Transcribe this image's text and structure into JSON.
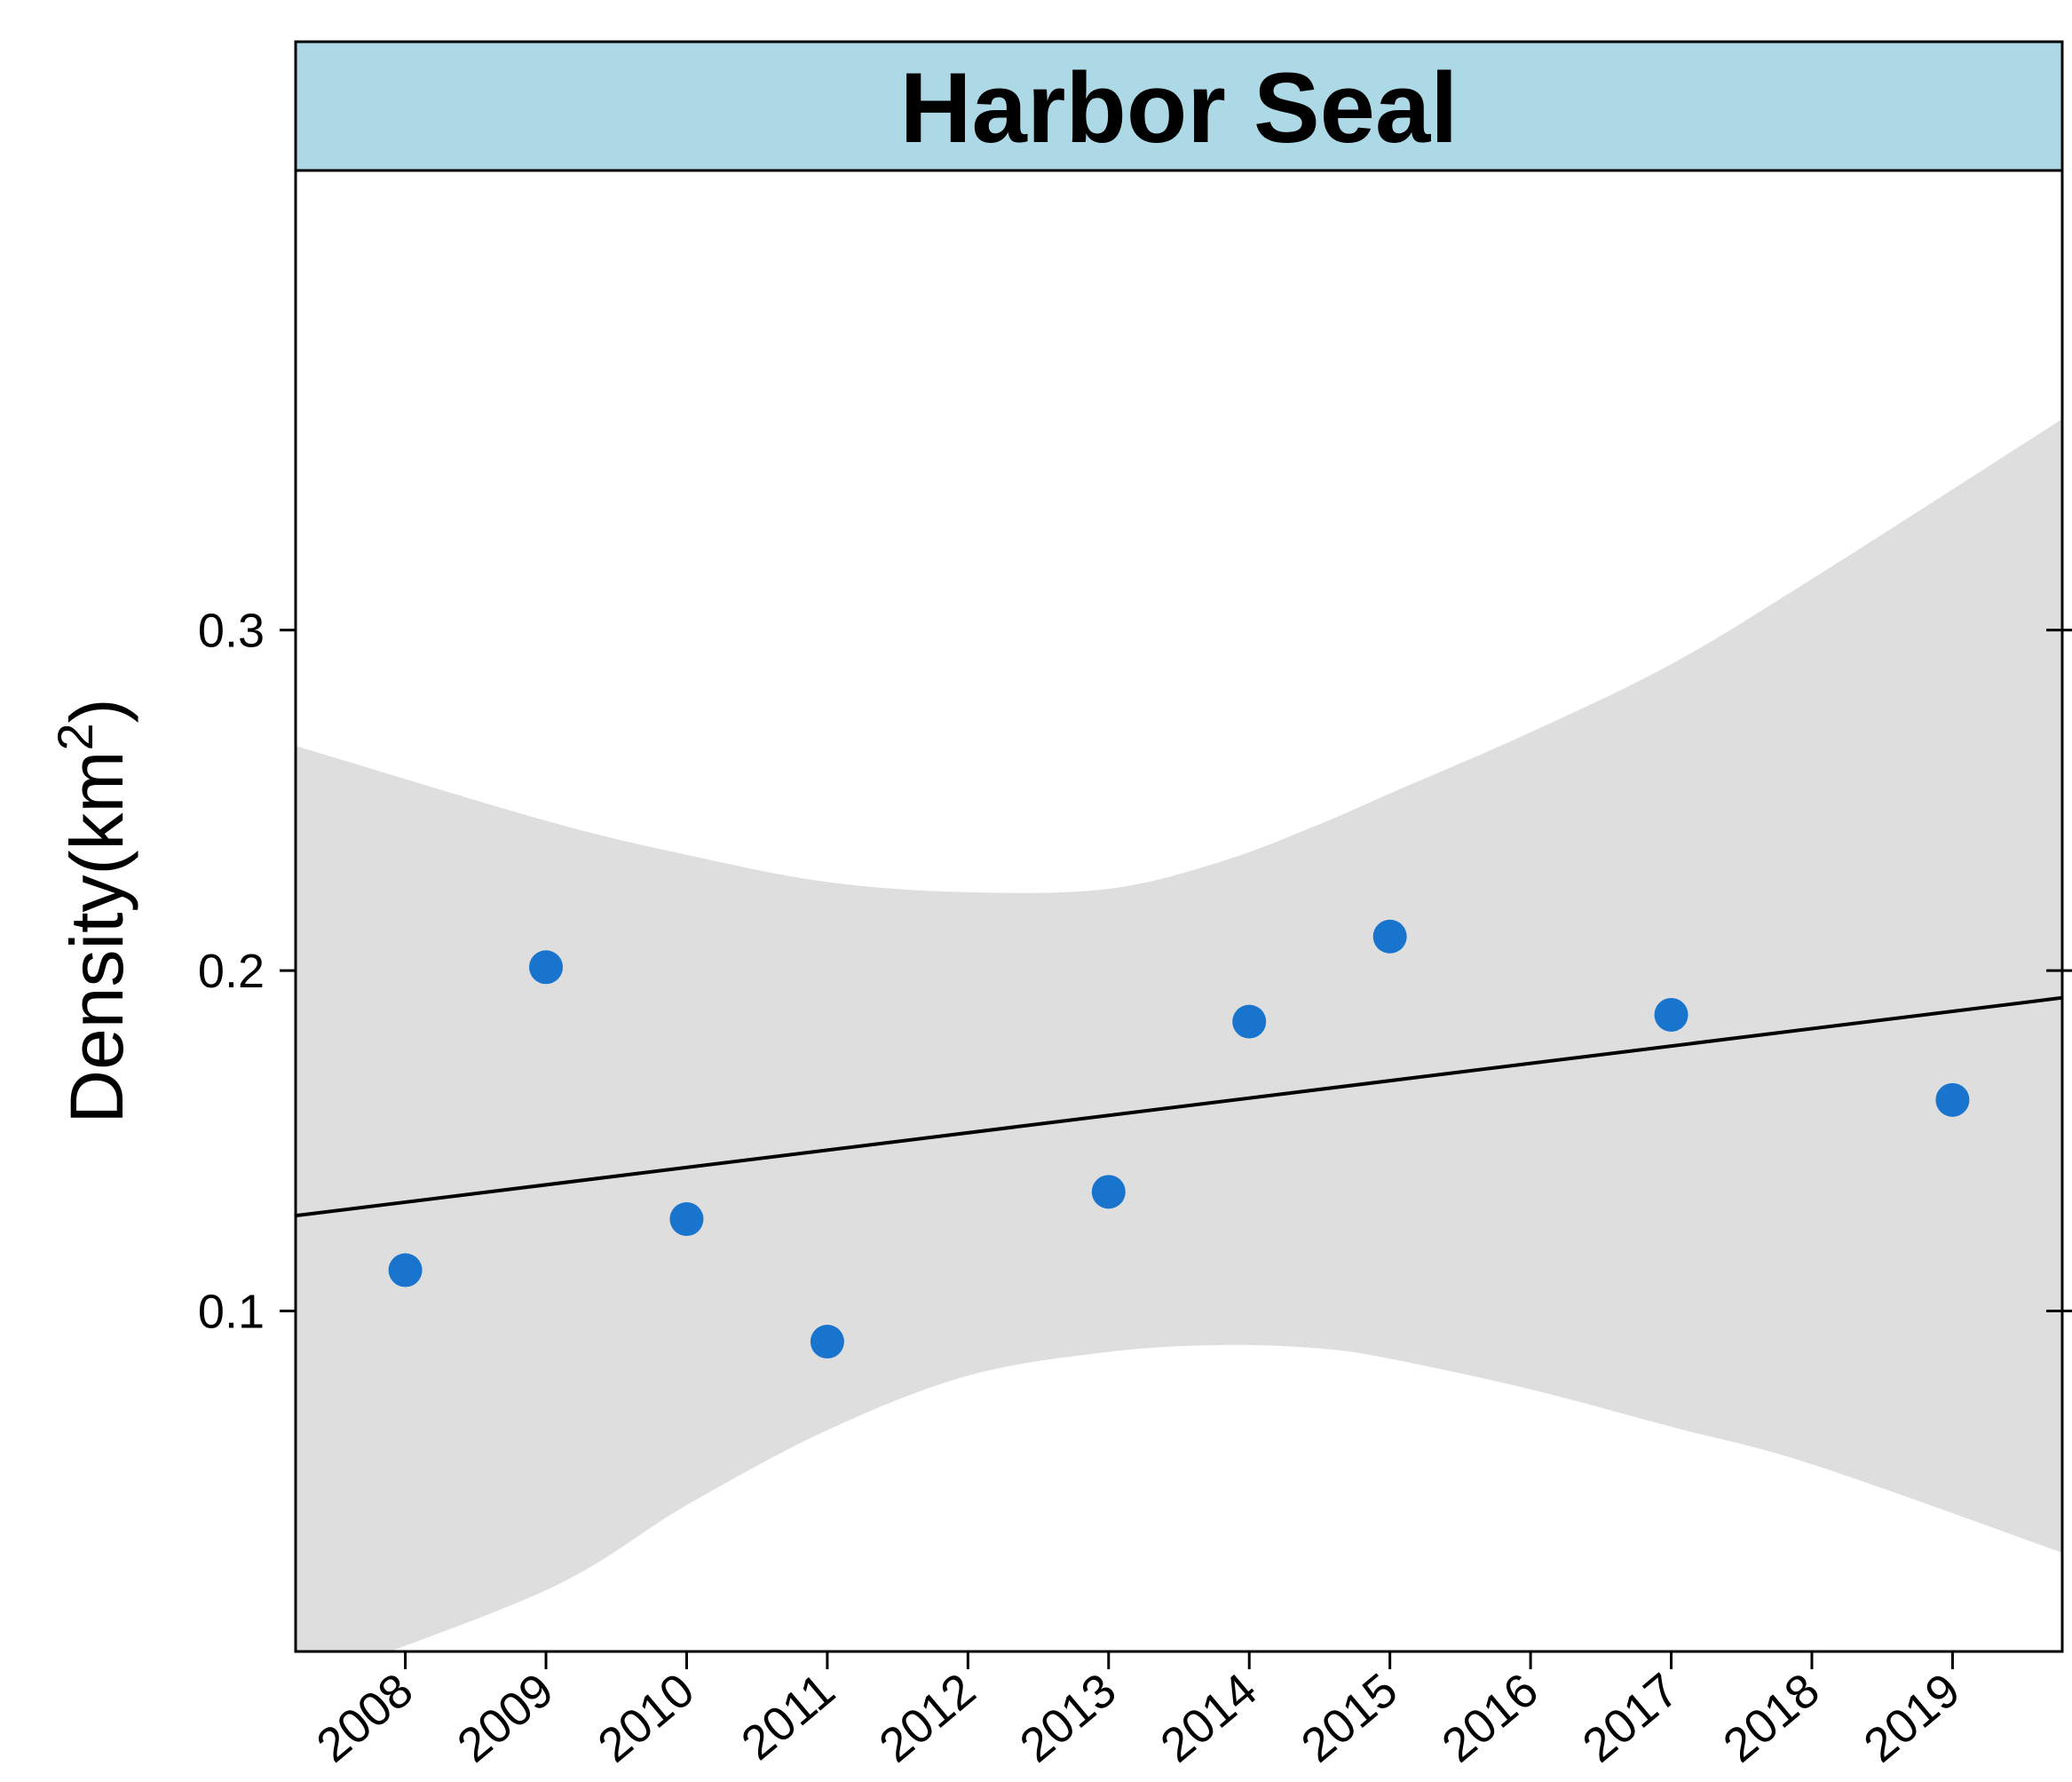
{
  "chart_data": {
    "type": "scatter",
    "title": "Harbor Seal",
    "ylabel": "Density(km",
    "ylabel_superscript": "2",
    "ylabel_close": ")",
    "xlabel": "",
    "x_ticks": [
      "2008",
      "2009",
      "2010",
      "2011",
      "2012",
      "2013",
      "2014",
      "2015",
      "2016",
      "2017",
      "2018",
      "2019"
    ],
    "y_ticks": [
      "0.1",
      "0.2",
      "0.3"
    ],
    "xlim": [
      2007.22,
      2019.78
    ],
    "ylim": [
      0.0,
      0.435
    ],
    "points": [
      {
        "x": 2008,
        "y": 0.112
      },
      {
        "x": 2009,
        "y": 0.201
      },
      {
        "x": 2010,
        "y": 0.127
      },
      {
        "x": 2011,
        "y": 0.091
      },
      {
        "x": 2013,
        "y": 0.135
      },
      {
        "x": 2014,
        "y": 0.185
      },
      {
        "x": 2015,
        "y": 0.21
      },
      {
        "x": 2017,
        "y": 0.187
      },
      {
        "x": 2019,
        "y": 0.162
      }
    ],
    "trend_line": {
      "x": [
        2007.22,
        2019.78
      ],
      "y": [
        0.128,
        0.192
      ]
    },
    "confidence_band": {
      "x": [
        2007.22,
        2009.0,
        2010.0,
        2011.0,
        2012.0,
        2013.0,
        2013.8,
        2014.5,
        2015.0,
        2016.0,
        2017.0,
        2018.0,
        2019.78
      ],
      "upper": [
        0.266,
        0.244,
        0.234,
        0.226,
        0.223,
        0.224,
        0.232,
        0.243,
        0.252,
        0.27,
        0.29,
        0.315,
        0.362
      ],
      "lower": [
        -0.01,
        0.018,
        0.043,
        0.065,
        0.081,
        0.088,
        0.09,
        0.089,
        0.086,
        0.077,
        0.066,
        0.055,
        0.029
      ]
    },
    "grid": false,
    "colors": {
      "points": "#1874CD",
      "band": "#DEDEDE",
      "line": "#000000",
      "title_strip": "#ADD8E6"
    }
  }
}
